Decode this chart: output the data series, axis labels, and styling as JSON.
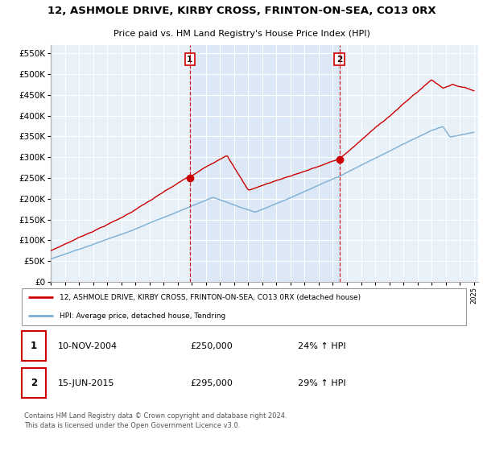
{
  "title": "12, ASHMOLE DRIVE, KIRBY CROSS, FRINTON-ON-SEA, CO13 0RX",
  "subtitle": "Price paid vs. HM Land Registry's House Price Index (HPI)",
  "legend_line1": "12, ASHMOLE DRIVE, KIRBY CROSS, FRINTON-ON-SEA, CO13 0RX (detached house)",
  "legend_line2": "HPI: Average price, detached house, Tendring",
  "annotation1_date": "10-NOV-2004",
  "annotation1_price": "£250,000",
  "annotation1_hpi": "24% ↑ HPI",
  "annotation2_date": "15-JUN-2015",
  "annotation2_price": "£295,000",
  "annotation2_hpi": "29% ↑ HPI",
  "footer": "Contains HM Land Registry data © Crown copyright and database right 2024.\nThis data is licensed under the Open Government Licence v3.0.",
  "red_color": "#cc0000",
  "blue_color": "#7bafd4",
  "shade_color": "#dce8f5",
  "background_color": "#ffffff",
  "plot_bg_color": "#e8f0f8",
  "grid_color": "#ffffff",
  "ylim": [
    0,
    570000
  ],
  "yticks": [
    0,
    50000,
    100000,
    150000,
    200000,
    250000,
    300000,
    350000,
    400000,
    450000,
    500000,
    550000
  ],
  "sale1_x": 2004.86,
  "sale1_y": 250000,
  "sale2_x": 2015.46,
  "sale2_y": 295000,
  "xmin": 1995,
  "xmax": 2025.3
}
